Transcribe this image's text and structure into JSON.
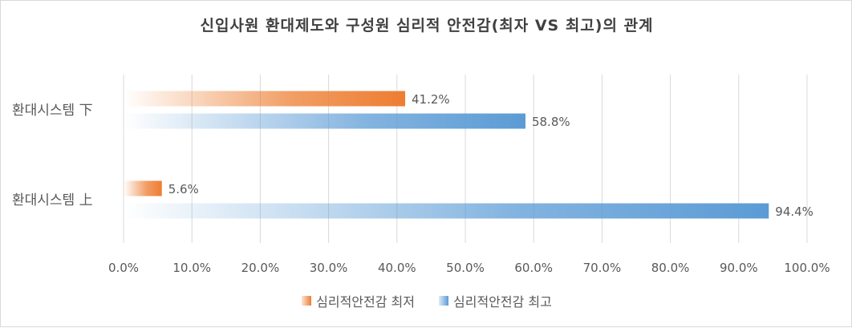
{
  "colors": {
    "series_low": "#ED7D31",
    "series_high": "#5B9BD5",
    "grid": "#d9d9d9",
    "text": "#595959"
  },
  "chart_data": {
    "type": "bar",
    "orientation": "horizontal",
    "title": "신입사원 환대제도와 구성원 심리적 안전감(최자 VS 최고)의 관계",
    "categories": [
      "환대시스템 下",
      "환대시스템 上"
    ],
    "series": [
      {
        "name": "심리적안전감 최저",
        "values": [
          41.2,
          5.6
        ],
        "labels": [
          "41.2%",
          "5.6%"
        ]
      },
      {
        "name": "심리적안전감 최고",
        "values": [
          58.8,
          94.4
        ],
        "labels": [
          "58.8%",
          "94.4%"
        ]
      }
    ],
    "xlim": [
      0,
      100
    ],
    "xticks": [
      0,
      10,
      20,
      30,
      40,
      50,
      60,
      70,
      80,
      90,
      100
    ],
    "xtick_labels": [
      "0.0%",
      "10.0%",
      "20.0%",
      "30.0%",
      "40.0%",
      "50.0%",
      "60.0%",
      "70.0%",
      "80.0%",
      "90.0%",
      "100.0%"
    ],
    "grid": "vertical",
    "legend": "bottom"
  }
}
